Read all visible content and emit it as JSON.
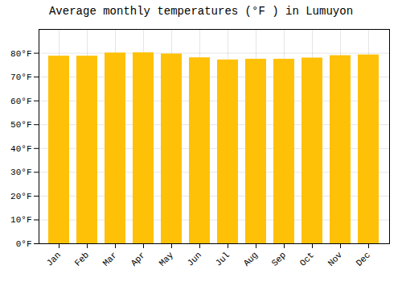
{
  "chart_data": {
    "type": "bar",
    "title": "Average monthly temperatures (°F ) in Lumuyon",
    "categories": [
      "Jan",
      "Feb",
      "Mar",
      "Apr",
      "May",
      "Jun",
      "Jul",
      "Aug",
      "Sep",
      "Oct",
      "Nov",
      "Dec"
    ],
    "values": [
      78.8,
      78.8,
      80.1,
      80.2,
      79.7,
      78.1,
      77.2,
      77.5,
      77.5,
      78.0,
      79.0,
      79.3
    ],
    "color": "#FFC107",
    "ylim": [
      0,
      90
    ],
    "yticks": [
      {
        "value": 0,
        "label": "0°F"
      },
      {
        "value": 10,
        "label": "10°F"
      },
      {
        "value": 20,
        "label": "20°F"
      },
      {
        "value": 30,
        "label": "30°F"
      },
      {
        "value": 40,
        "label": "40°F"
      },
      {
        "value": 50,
        "label": "50°F"
      },
      {
        "value": 60,
        "label": "60°F"
      },
      {
        "value": 70,
        "label": "70°F"
      },
      {
        "value": 80,
        "label": "80°F"
      }
    ],
    "grid": true
  }
}
